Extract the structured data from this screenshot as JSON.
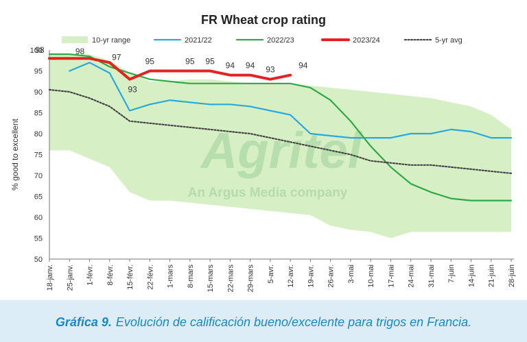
{
  "chart_data": {
    "type": "line",
    "title": "FR Wheat crop rating",
    "ylabel": "% good to excellent",
    "xlabel": "",
    "ylim": [
      50,
      100
    ],
    "yticks": [
      50,
      55,
      60,
      65,
      70,
      75,
      80,
      85,
      90,
      95,
      100
    ],
    "grid": false,
    "legend_position": "top",
    "categories": [
      "18-janv.",
      "25-janv.",
      "1-févr.",
      "8-févr.",
      "15-févr.",
      "22-févr.",
      "1-mars",
      "8-mars",
      "15-mars",
      "22-mars",
      "29-mars",
      "5-avr.",
      "12-avr.",
      "19-avr.",
      "26-avr.",
      "3-mai",
      "10-mai",
      "17-mai",
      "24-mai",
      "31-mai",
      "7-juin",
      "14-juin",
      "21-juin",
      "28-juin"
    ],
    "range": {
      "name": "10-yr range",
      "color": "#d6efc4",
      "upper": [
        99,
        99,
        99,
        97.5,
        94.5,
        92.5,
        92.5,
        93,
        93,
        92.5,
        92,
        92,
        92,
        91.5,
        91,
        90.5,
        90,
        89.5,
        89,
        88.5,
        87.5,
        86.5,
        84.5,
        81
      ],
      "lower": [
        76,
        76,
        74,
        72,
        66,
        64,
        64,
        63.5,
        63,
        62.5,
        62,
        61.5,
        61,
        60.5,
        58,
        57,
        56.5,
        55,
        56.5,
        56.5,
        56.5,
        56.5,
        56.5,
        56.5
      ]
    },
    "series": [
      {
        "name": "2021/22",
        "color": "#29a8dc",
        "values": [
          null,
          95,
          97,
          94.5,
          85.5,
          87,
          88,
          87.5,
          87,
          87,
          86.5,
          85.5,
          84.5,
          80,
          79.5,
          79,
          79,
          79,
          80,
          80,
          81,
          80.5,
          79,
          79
        ]
      },
      {
        "name": "2022/23",
        "color": "#2eaa44",
        "values": [
          99,
          99,
          98.5,
          96,
          94.5,
          93,
          92.5,
          92,
          92,
          92,
          92,
          92,
          92,
          91,
          88,
          83,
          77,
          72,
          68,
          66,
          64.5,
          64,
          64,
          64
        ]
      },
      {
        "name": "2023/24",
        "color": "#e32222",
        "values": [
          98,
          98,
          98,
          97,
          93,
          95,
          95,
          95,
          95,
          94,
          94,
          93,
          94,
          null,
          null,
          null,
          null,
          null,
          null,
          null,
          null,
          null,
          null,
          null
        ]
      },
      {
        "name": "5-yr avg",
        "color": "#444444",
        "dashed": true,
        "values": [
          90.5,
          90,
          88.5,
          86.5,
          83,
          82.5,
          82,
          81.5,
          81,
          80.5,
          80,
          79,
          78,
          77,
          76,
          75,
          73.5,
          73,
          72.5,
          72.5,
          72,
          71.5,
          71,
          70.5
        ]
      }
    ],
    "annotations": [
      {
        "text": "98",
        "series": "2023/24",
        "index": 0
      },
      {
        "text": "98",
        "series": "2023/24",
        "index": 2
      },
      {
        "text": "97",
        "series": "2023/24",
        "index": 3
      },
      {
        "text": "93",
        "series": "2023/24",
        "index": 4
      },
      {
        "text": "95",
        "series": "2023/24",
        "index": 5
      },
      {
        "text": "95",
        "series": "2023/24",
        "index": 7
      },
      {
        "text": "95",
        "series": "2023/24",
        "index": 8
      },
      {
        "text": "94",
        "series": "2023/24",
        "index": 9
      },
      {
        "text": "94",
        "series": "2023/24",
        "index": 10
      },
      {
        "text": "93",
        "series": "2023/24",
        "index": 11
      },
      {
        "text": "94",
        "series": "2023/24",
        "index": 12
      }
    ]
  },
  "watermark": {
    "brand": "Agritel",
    "tagline": "An Argus Media company"
  },
  "caption": {
    "lead": "Gráfica 9.",
    "text": "Evolución de calificación bueno/excelente para trigos en Francia."
  }
}
